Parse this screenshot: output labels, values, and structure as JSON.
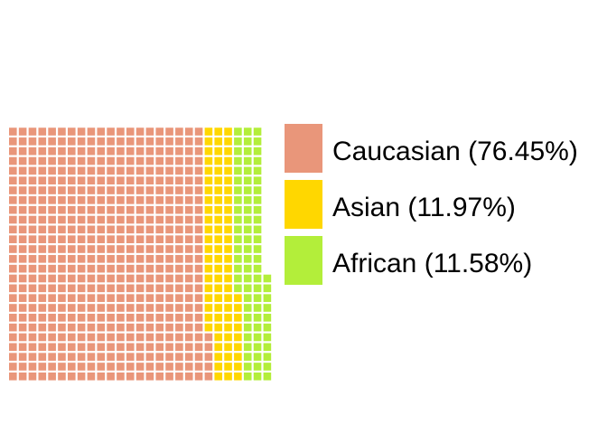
{
  "chart_data": {
    "type": "waffle",
    "title": "",
    "unit_total": 687,
    "grid_rows": 26,
    "fill_direction": "column-major, bottom-to-top",
    "series": [
      {
        "name": "Caucasian",
        "percent": 76.45,
        "units": 525,
        "color": "#E9967A",
        "label": "Caucasian (76.45%)"
      },
      {
        "name": "Asian",
        "percent": 11.97,
        "units": 82,
        "color": "#FFD700",
        "label": "Asian (11.97%)"
      },
      {
        "name": "African",
        "percent": 11.58,
        "units": 80,
        "color": "#B3EE3A",
        "label": "African (11.58%)"
      }
    ],
    "legend_position": "right"
  }
}
